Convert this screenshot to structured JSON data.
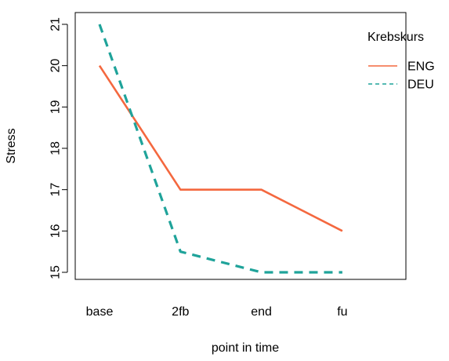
{
  "chart_data": {
    "type": "line",
    "title": "",
    "xlabel": "point in time",
    "ylabel": "Stress",
    "categories": [
      "base",
      "2fb",
      "end",
      "fu"
    ],
    "ylim": [
      14.8,
      21.2
    ],
    "yticks": [
      15,
      16,
      17,
      18,
      19,
      20,
      21
    ],
    "grid": false,
    "legend": {
      "title": "Krebskurs",
      "placement": "top-right"
    },
    "series": [
      {
        "name": "ENG",
        "values": [
          20,
          17,
          17,
          16
        ],
        "color": "#F4683F",
        "style": "solid"
      },
      {
        "name": "DEU",
        "values": [
          21,
          15.5,
          15,
          15
        ],
        "color": "#1FA39A",
        "style": "dashed"
      }
    ]
  }
}
